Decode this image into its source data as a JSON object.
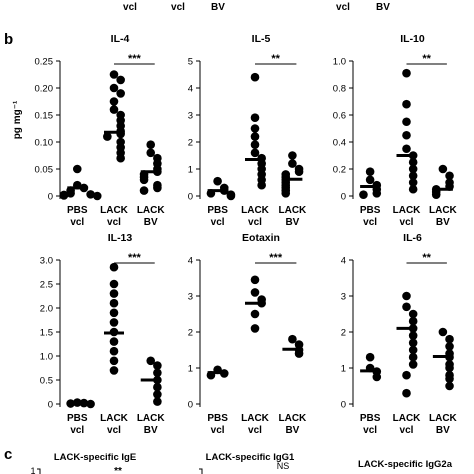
{
  "top_strip": [
    "vcl",
    "vcl",
    "BV",
    "vcl",
    "BV"
  ],
  "panel_b_label": "b",
  "panel_c_label": "c",
  "y_unit": "pg mg⁻¹",
  "dot_color": "#000000",
  "chart_data": [
    {
      "type": "scatter",
      "title": "IL-4",
      "ylim": [
        0,
        0.25
      ],
      "yticks": [
        "0",
        "0.05",
        "0.10",
        "0.15",
        "0.20",
        "0.25"
      ],
      "ytick_values": [
        0,
        0.05,
        0.1,
        0.15,
        0.2,
        0.25
      ],
      "groups": [
        [
          "PBS",
          "vcl"
        ],
        [
          "LACK",
          "vcl"
        ],
        [
          "LACK",
          "BV"
        ]
      ],
      "values": [
        [
          0.05,
          0.02,
          0.015,
          0.01,
          0.005,
          0.003,
          0.002,
          0.001,
          0
        ],
        [
          0.225,
          0.215,
          0.2,
          0.19,
          0.175,
          0.16,
          0.15,
          0.14,
          0.13,
          0.12,
          0.115,
          0.11,
          0.1,
          0.09,
          0.08,
          0.07
        ],
        [
          0.095,
          0.08,
          0.07,
          0.06,
          0.05,
          0.045,
          0.04,
          0.035,
          0.03,
          0.02,
          0.015,
          0.01
        ]
      ],
      "medians": [
        0.015,
        0.118,
        0.045
      ],
      "significance": {
        "from": 1,
        "to": 2,
        "label": "***"
      }
    },
    {
      "type": "scatter",
      "title": "IL-5",
      "ylim": [
        0,
        5
      ],
      "yticks": [
        "0",
        "1",
        "2",
        "3",
        "4",
        "5"
      ],
      "ytick_values": [
        0,
        1,
        2,
        3,
        4,
        5
      ],
      "groups": [
        [
          "PBS",
          "vcl"
        ],
        [
          "LACK",
          "vcl"
        ],
        [
          "LACK",
          "BV"
        ]
      ],
      "values": [
        [
          0.55,
          0.3,
          0.2,
          0.1,
          0.05,
          0
        ],
        [
          4.4,
          2.9,
          2.5,
          2.2,
          1.9,
          1.6,
          1.4,
          1.2,
          1.0,
          0.8,
          0.6,
          0.4
        ],
        [
          1.5,
          1.2,
          1.0,
          0.9,
          0.8,
          0.7,
          0.6,
          0.5,
          0.4,
          0.3,
          0.2,
          0.1
        ]
      ],
      "medians": [
        0.2,
        1.35,
        0.62
      ],
      "significance": {
        "from": 1,
        "to": 2,
        "label": "**"
      }
    },
    {
      "type": "scatter",
      "title": "IL-10",
      "ylim": [
        0,
        1.0
      ],
      "yticks": [
        "0",
        "0.2",
        "0.4",
        "0.6",
        "0.8",
        "1.0"
      ],
      "ytick_values": [
        0,
        0.2,
        0.4,
        0.6,
        0.8,
        1.0
      ],
      "groups": [
        [
          "PBS",
          "vcl"
        ],
        [
          "LACK",
          "vcl"
        ],
        [
          "LACK",
          "BV"
        ]
      ],
      "values": [
        [
          0.18,
          0.12,
          0.08,
          0.05,
          0.02,
          0.01
        ],
        [
          0.91,
          0.68,
          0.55,
          0.45,
          0.35,
          0.3,
          0.25,
          0.2,
          0.15,
          0.1,
          0.05
        ],
        [
          0.2,
          0.15,
          0.1,
          0.07,
          0.05,
          0.03,
          0.01
        ]
      ],
      "medians": [
        0.07,
        0.3,
        0.05
      ],
      "significance": {
        "from": 1,
        "to": 2,
        "label": "**"
      }
    },
    {
      "type": "scatter",
      "title": "IL-13",
      "ylim": [
        0,
        3.0
      ],
      "yticks": [
        "0",
        "0.5",
        "1.0",
        "1.5",
        "2.0",
        "2.5",
        "3.0"
      ],
      "ytick_values": [
        0,
        0.5,
        1.0,
        1.5,
        2.0,
        2.5,
        3.0
      ],
      "groups": [
        [
          "PBS",
          "vcl"
        ],
        [
          "LACK",
          "vcl"
        ],
        [
          "LACK",
          "BV"
        ]
      ],
      "values": [
        [
          0.03,
          0.02,
          0.01,
          0
        ],
        [
          2.85,
          2.5,
          2.3,
          2.1,
          1.9,
          1.7,
          1.5,
          1.3,
          1.1,
          0.9,
          0.7
        ],
        [
          0.9,
          0.8,
          0.65,
          0.5,
          0.35,
          0.2,
          0.05
        ]
      ],
      "medians": [
        0.02,
        1.48,
        0.5
      ],
      "significance": {
        "from": 1,
        "to": 2,
        "label": "***"
      }
    },
    {
      "type": "scatter",
      "title": "Eotaxin",
      "ylim": [
        0,
        4
      ],
      "yticks": [
        "0",
        "1",
        "2",
        "3",
        "4"
      ],
      "ytick_values": [
        0,
        1,
        2,
        3,
        4
      ],
      "groups": [
        [
          "PBS",
          "vcl"
        ],
        [
          "LACK",
          "vcl"
        ],
        [
          "LACK",
          "BV"
        ]
      ],
      "values": [
        [
          0.95,
          0.85,
          0.8
        ],
        [
          3.45,
          3.1,
          2.9,
          2.8,
          2.5,
          2.1
        ],
        [
          1.8,
          1.65,
          1.5,
          1.4
        ]
      ],
      "medians": [
        0.87,
        2.8,
        1.52
      ],
      "significance": {
        "from": 1,
        "to": 2,
        "label": "***"
      }
    },
    {
      "type": "scatter",
      "title": "IL-6",
      "ylim": [
        0,
        4
      ],
      "yticks": [
        "0",
        "1",
        "2",
        "3",
        "4"
      ],
      "ytick_values": [
        0,
        1,
        2,
        3,
        4
      ],
      "groups": [
        [
          "PBS",
          "vcl"
        ],
        [
          "LACK",
          "vcl"
        ],
        [
          "LACK",
          "BV"
        ]
      ],
      "values": [
        [
          1.3,
          1.0,
          0.9,
          0.75
        ],
        [
          3.0,
          2.7,
          2.5,
          2.3,
          2.1,
          1.9,
          1.7,
          1.5,
          1.3,
          1.1,
          0.8,
          0.3
        ],
        [
          2.0,
          1.8,
          1.6,
          1.4,
          1.3,
          1.1,
          1.0,
          0.8,
          0.7,
          0.5
        ]
      ],
      "medians": [
        0.92,
        2.1,
        1.32
      ],
      "significance": {
        "from": 1,
        "to": 2,
        "label": "**"
      }
    }
  ],
  "panel_c": {
    "titles": [
      "LACK-specific IgE",
      "LACK-specific IgG1",
      "LACK-specific IgG2a"
    ],
    "partial_labels": [
      "1",
      "**",
      "NS"
    ]
  }
}
